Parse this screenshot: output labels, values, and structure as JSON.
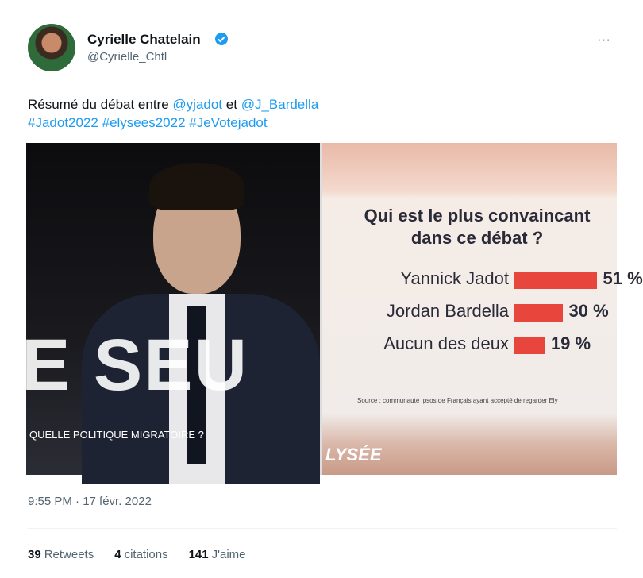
{
  "author": {
    "name": "Cyrielle Chatelain",
    "handle": "@Cyrielle_Chtl"
  },
  "menu": "···",
  "text": {
    "words": [
      "Résumé du débat entre",
      "@yjadot",
      "et",
      "@J_Bardella"
    ],
    "hashtags": [
      "#Jadot2022",
      "#elysees2022",
      "#JeVotejadot"
    ]
  },
  "media": {
    "photo": {
      "overlay": "E SEU",
      "caption": "QUELLE POLITIQUE MIGRATOIRE ?"
    },
    "logo": "LYSÉE",
    "source": "Source : communauté Ipsos de Français ayant accepté de regarder Ely",
    "chart_data": {
      "type": "bar",
      "title": "Qui est le plus convaincant dans ce débat ?",
      "categories": [
        "Yannick Jadot",
        "Jordan Bardella",
        "Aucun des deux"
      ],
      "values": [
        51,
        30,
        19
      ],
      "value_labels": [
        "51 %",
        "30 %",
        "19 %"
      ],
      "color": "#e8453c"
    }
  },
  "timestamp": "9:55 PM · 17 févr. 2022",
  "stats": [
    {
      "count": 39,
      "label": "Retweets"
    },
    {
      "count": 4,
      "label": "citations"
    },
    {
      "count": 141,
      "label": "J'aime"
    }
  ]
}
